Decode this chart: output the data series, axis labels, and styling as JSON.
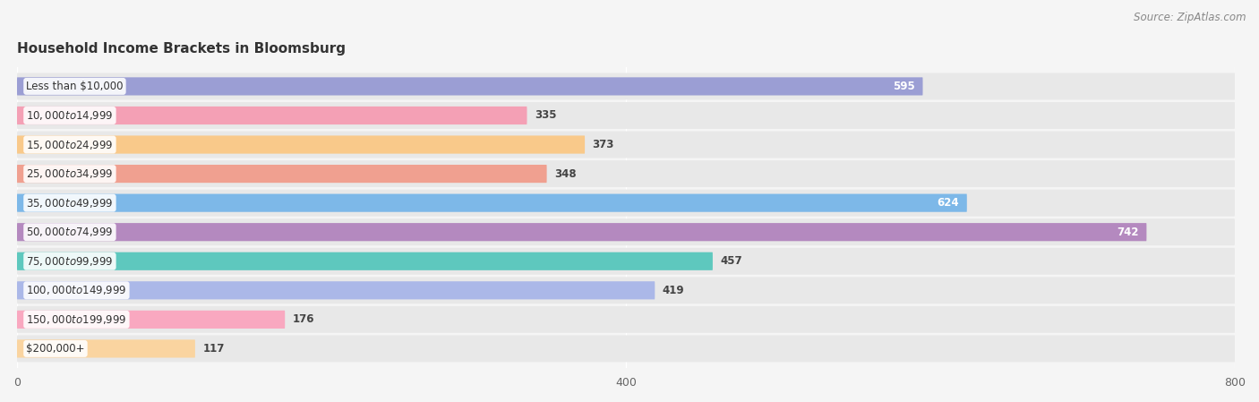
{
  "title": "Household Income Brackets in Bloomsburg",
  "source": "Source: ZipAtlas.com",
  "categories": [
    "Less than $10,000",
    "$10,000 to $14,999",
    "$15,000 to $24,999",
    "$25,000 to $34,999",
    "$35,000 to $49,999",
    "$50,000 to $74,999",
    "$75,000 to $99,999",
    "$100,000 to $149,999",
    "$150,000 to $199,999",
    "$200,000+"
  ],
  "values": [
    595,
    335,
    373,
    348,
    624,
    742,
    457,
    419,
    176,
    117
  ],
  "bar_colors": [
    "#9b9ed4",
    "#f4a0b5",
    "#f9c98a",
    "#f0a090",
    "#7db8e8",
    "#b489bf",
    "#5ec8be",
    "#abb8e8",
    "#f9a8c0",
    "#fad4a0"
  ],
  "xlim": [
    0,
    800
  ],
  "xticks": [
    0,
    400,
    800
  ],
  "background_color": "#f5f5f5",
  "bar_row_background": "#e8e8e8",
  "label_inside_threshold": 500,
  "bar_height": 0.62,
  "title_fontsize": 11,
  "source_fontsize": 8.5,
  "label_fontsize": 8.5,
  "cat_fontsize": 8.5,
  "tick_fontsize": 9
}
